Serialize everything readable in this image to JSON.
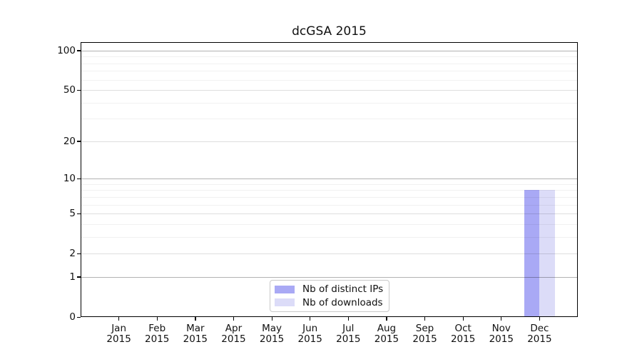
{
  "title": "dcGSA 2015",
  "chart_data": {
    "type": "bar",
    "title": "dcGSA 2015",
    "categories": [
      "Jan",
      "Feb",
      "Mar",
      "Apr",
      "May",
      "Jun",
      "Jul",
      "Aug",
      "Sep",
      "Oct",
      "Nov",
      "Dec"
    ],
    "x_year": "2015",
    "series": [
      {
        "name": "Nb of distinct IPs",
        "color": "#a9a9f5",
        "values": [
          0,
          0,
          0,
          0,
          0,
          0,
          0,
          0,
          0,
          0,
          0,
          8
        ]
      },
      {
        "name": "Nb of downloads",
        "color": "#dcdcf8",
        "values": [
          0,
          0,
          0,
          0,
          0,
          0,
          0,
          0,
          0,
          0,
          0,
          8
        ]
      }
    ],
    "xlabel": "",
    "ylabel": "",
    "yscale": "log10(1+v)",
    "ylim": [
      0,
      116
    ],
    "y_major_ticks": [
      0,
      1,
      2,
      5,
      10,
      20,
      50,
      100
    ],
    "y_emphasized_gridlines": [
      1,
      10,
      100
    ],
    "y_minor_gridlines": [
      3,
      4,
      6,
      7,
      8,
      9,
      30,
      40,
      60,
      70,
      80,
      90
    ],
    "grid": "horizontal",
    "legend_position": "inside-bottom-center"
  }
}
